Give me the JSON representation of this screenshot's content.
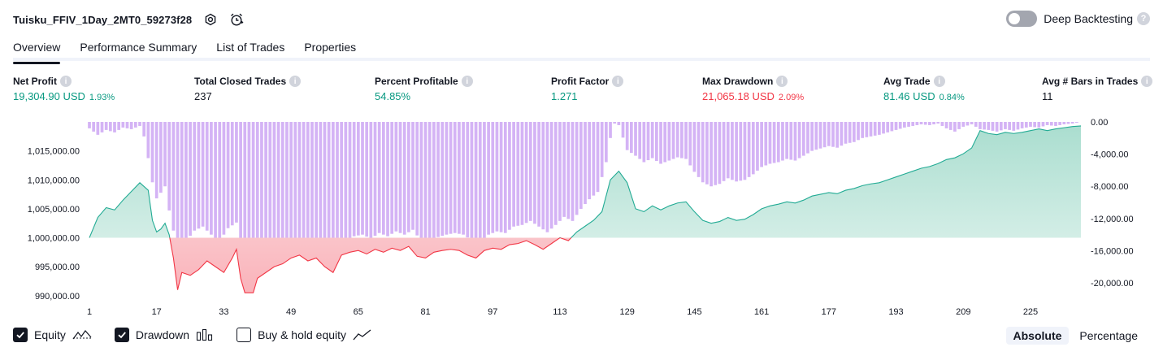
{
  "header": {
    "title": "Tuisku_FFIV_1Day_2MT0_59273f28",
    "settings_icon": "gear-icon",
    "alert_icon": "alarm-clock-icon"
  },
  "deep_backtesting": {
    "label": "Deep Backtesting",
    "enabled": false,
    "help": "?"
  },
  "tabs": [
    {
      "label": "Overview",
      "active": true
    },
    {
      "label": "Performance Summary",
      "active": false
    },
    {
      "label": "List of Trades",
      "active": false
    },
    {
      "label": "Properties",
      "active": false
    }
  ],
  "metrics": [
    {
      "label": "Net Profit",
      "value": "19,304.90 USD",
      "pct": "1.93%",
      "color": "green"
    },
    {
      "label": "Total Closed Trades",
      "value": "237",
      "pct": "",
      "color": "dark"
    },
    {
      "label": "Percent Profitable",
      "value": "54.85%",
      "pct": "",
      "color": "green"
    },
    {
      "label": "Profit Factor",
      "value": "1.271",
      "pct": "",
      "color": "green"
    },
    {
      "label": "Max Drawdown",
      "value": "21,065.18 USD",
      "pct": "2.09%",
      "color": "red"
    },
    {
      "label": "Avg Trade",
      "value": "81.46 USD",
      "pct": "0.84%",
      "color": "green"
    },
    {
      "label": "Avg # Bars in Trades",
      "value": "11",
      "pct": "",
      "color": "dark"
    }
  ],
  "chart_data": {
    "type": "area",
    "x_ticks": [
      "1",
      "17",
      "33",
      "49",
      "65",
      "81",
      "97",
      "113",
      "129",
      "145",
      "161",
      "177",
      "193",
      "209",
      "225"
    ],
    "equity": {
      "name": "Equity",
      "baseline": 1000000,
      "ylim": [
        988000,
        1020000
      ],
      "y_ticks": [
        "1,015,000.00",
        "1,010,000.00",
        "1,005,000.00",
        "1,000,000.00",
        "995,000.00",
        "990,000.00"
      ],
      "y_tick_values": [
        1015000,
        1010000,
        1005000,
        1000000,
        995000,
        990000
      ],
      "points": [
        [
          1,
          1000000
        ],
        [
          3,
          1003500
        ],
        [
          5,
          1005200
        ],
        [
          7,
          1004800
        ],
        [
          9,
          1006500
        ],
        [
          11,
          1008000
        ],
        [
          13,
          1009500
        ],
        [
          15,
          1008200
        ],
        [
          16,
          1003000
        ],
        [
          17,
          1001000
        ],
        [
          18,
          1001500
        ],
        [
          19,
          1002500
        ],
        [
          20,
          1000500
        ],
        [
          21,
          996500
        ],
        [
          22,
          991000
        ],
        [
          23,
          994000
        ],
        [
          25,
          993500
        ],
        [
          27,
          994500
        ],
        [
          29,
          996000
        ],
        [
          31,
          995000
        ],
        [
          33,
          994000
        ],
        [
          35,
          996500
        ],
        [
          36,
          998000
        ],
        [
          37,
          993000
        ],
        [
          38,
          990500
        ],
        [
          40,
          990500
        ],
        [
          41,
          993000
        ],
        [
          43,
          994000
        ],
        [
          45,
          995000
        ],
        [
          47,
          995500
        ],
        [
          49,
          996500
        ],
        [
          51,
          997000
        ],
        [
          53,
          996000
        ],
        [
          55,
          996500
        ],
        [
          57,
          995000
        ],
        [
          59,
          994000
        ],
        [
          61,
          997000
        ],
        [
          63,
          997500
        ],
        [
          65,
          997800
        ],
        [
          67,
          997200
        ],
        [
          69,
          998000
        ],
        [
          71,
          997500
        ],
        [
          73,
          998200
        ],
        [
          75,
          997800
        ],
        [
          77,
          998500
        ],
        [
          79,
          996800
        ],
        [
          81,
          996500
        ],
        [
          83,
          997500
        ],
        [
          85,
          997800
        ],
        [
          87,
          998000
        ],
        [
          89,
          997800
        ],
        [
          91,
          997000
        ],
        [
          93,
          996500
        ],
        [
          95,
          997800
        ],
        [
          97,
          998200
        ],
        [
          99,
          998000
        ],
        [
          101,
          998800
        ],
        [
          103,
          999000
        ],
        [
          105,
          999500
        ],
        [
          107,
          998800
        ],
        [
          109,
          998000
        ],
        [
          111,
          999000
        ],
        [
          113,
          1000000
        ],
        [
          115,
          999500
        ],
        [
          117,
          1001000
        ],
        [
          119,
          1002000
        ],
        [
          121,
          1003000
        ],
        [
          123,
          1004500
        ],
        [
          125,
          1010000
        ],
        [
          127,
          1011500
        ],
        [
          129,
          1009500
        ],
        [
          131,
          1005000
        ],
        [
          133,
          1004500
        ],
        [
          135,
          1005500
        ],
        [
          137,
          1004800
        ],
        [
          139,
          1005500
        ],
        [
          141,
          1006000
        ],
        [
          143,
          1006200
        ],
        [
          145,
          1004500
        ],
        [
          147,
          1003000
        ],
        [
          149,
          1002500
        ],
        [
          151,
          1002800
        ],
        [
          153,
          1003500
        ],
        [
          155,
          1003000
        ],
        [
          157,
          1003200
        ],
        [
          159,
          1004000
        ],
        [
          161,
          1005000
        ],
        [
          163,
          1005500
        ],
        [
          165,
          1005800
        ],
        [
          167,
          1006200
        ],
        [
          169,
          1006000
        ],
        [
          171,
          1006500
        ],
        [
          173,
          1007200
        ],
        [
          175,
          1007500
        ],
        [
          177,
          1007800
        ],
        [
          179,
          1007600
        ],
        [
          181,
          1008200
        ],
        [
          183,
          1008500
        ],
        [
          185,
          1009000
        ],
        [
          187,
          1009300
        ],
        [
          189,
          1009500
        ],
        [
          191,
          1010000
        ],
        [
          193,
          1010500
        ],
        [
          195,
          1011000
        ],
        [
          197,
          1011500
        ],
        [
          199,
          1012000
        ],
        [
          201,
          1012300
        ],
        [
          203,
          1012800
        ],
        [
          205,
          1013500
        ],
        [
          207,
          1013800
        ],
        [
          209,
          1014500
        ],
        [
          211,
          1015500
        ],
        [
          212,
          1017000
        ],
        [
          213,
          1018500
        ],
        [
          215,
          1018000
        ],
        [
          217,
          1017800
        ],
        [
          219,
          1018200
        ],
        [
          221,
          1018000
        ],
        [
          223,
          1018200
        ],
        [
          225,
          1018500
        ],
        [
          227,
          1018800
        ],
        [
          229,
          1018500
        ],
        [
          231,
          1018800
        ],
        [
          233,
          1019000
        ],
        [
          235,
          1019200
        ],
        [
          237,
          1019305
        ]
      ]
    },
    "drawdown": {
      "name": "Drawdown",
      "ylim": [
        -21000,
        0
      ],
      "y_ticks": [
        "0.00",
        "-4,000.00",
        "-8,000.00",
        "-12,000.00",
        "-16,000.00",
        "-20,000.00"
      ],
      "y_tick_values": [
        0,
        -4000,
        -8000,
        -12000,
        -16000,
        -20000
      ],
      "keyframes": [
        [
          1,
          -800
        ],
        [
          3,
          -1600
        ],
        [
          5,
          -1000
        ],
        [
          7,
          -1300
        ],
        [
          9,
          -700
        ],
        [
          11,
          -900
        ],
        [
          13,
          -500
        ],
        [
          14,
          -1800
        ],
        [
          15,
          -4500
        ],
        [
          16,
          -7500
        ],
        [
          17,
          -9500
        ],
        [
          18,
          -8800
        ],
        [
          19,
          -8000
        ],
        [
          20,
          -11000
        ],
        [
          21,
          -13500
        ],
        [
          22,
          -15500
        ],
        [
          24,
          -14800
        ],
        [
          26,
          -13500
        ],
        [
          28,
          -13000
        ],
        [
          30,
          -14000
        ],
        [
          32,
          -14800
        ],
        [
          34,
          -13200
        ],
        [
          36,
          -12500
        ],
        [
          37,
          -16500
        ],
        [
          38,
          -20000
        ],
        [
          40,
          -20200
        ],
        [
          42,
          -18000
        ],
        [
          44,
          -17200
        ],
        [
          46,
          -16500
        ],
        [
          48,
          -16200
        ],
        [
          50,
          -15500
        ],
        [
          52,
          -15000
        ],
        [
          54,
          -15800
        ],
        [
          56,
          -15500
        ],
        [
          58,
          -16500
        ],
        [
          60,
          -17200
        ],
        [
          62,
          -14600
        ],
        [
          64,
          -14200
        ],
        [
          66,
          -14000
        ],
        [
          68,
          -14500
        ],
        [
          70,
          -13800
        ],
        [
          72,
          -14200
        ],
        [
          74,
          -13600
        ],
        [
          76,
          -14000
        ],
        [
          78,
          -13400
        ],
        [
          80,
          -14800
        ],
        [
          82,
          -15000
        ],
        [
          84,
          -14300
        ],
        [
          86,
          -14000
        ],
        [
          88,
          -13800
        ],
        [
          90,
          -14000
        ],
        [
          92,
          -14700
        ],
        [
          94,
          -15300
        ],
        [
          96,
          -14000
        ],
        [
          98,
          -13600
        ],
        [
          100,
          -13800
        ],
        [
          102,
          -13000
        ],
        [
          104,
          -12800
        ],
        [
          106,
          -12300
        ],
        [
          108,
          -13000
        ],
        [
          110,
          -13700
        ],
        [
          112,
          -12800
        ],
        [
          114,
          -11800
        ],
        [
          116,
          -12300
        ],
        [
          118,
          -10800
        ],
        [
          120,
          -9600
        ],
        [
          122,
          -8700
        ],
        [
          124,
          -5000
        ],
        [
          125,
          -2000
        ],
        [
          126,
          -200
        ],
        [
          127,
          -400
        ],
        [
          129,
          -3500
        ],
        [
          131,
          -4200
        ],
        [
          133,
          -5000
        ],
        [
          135,
          -4500
        ],
        [
          137,
          -5200
        ],
        [
          139,
          -4800
        ],
        [
          141,
          -4400
        ],
        [
          143,
          -4600
        ],
        [
          145,
          -6200
        ],
        [
          147,
          -7500
        ],
        [
          149,
          -8000
        ],
        [
          151,
          -7700
        ],
        [
          153,
          -7000
        ],
        [
          155,
          -7400
        ],
        [
          157,
          -7200
        ],
        [
          159,
          -6500
        ],
        [
          161,
          -5600
        ],
        [
          163,
          -5200
        ],
        [
          165,
          -5000
        ],
        [
          167,
          -4600
        ],
        [
          169,
          -4800
        ],
        [
          171,
          -4200
        ],
        [
          173,
          -3600
        ],
        [
          175,
          -3300
        ],
        [
          177,
          -3000
        ],
        [
          179,
          -3200
        ],
        [
          181,
          -2700
        ],
        [
          183,
          -2500
        ],
        [
          185,
          -2000
        ],
        [
          187,
          -1800
        ],
        [
          189,
          -1600
        ],
        [
          191,
          -1300
        ],
        [
          193,
          -1000
        ],
        [
          195,
          -700
        ],
        [
          197,
          -500
        ],
        [
          199,
          -300
        ],
        [
          201,
          -400
        ],
        [
          203,
          -200
        ],
        [
          205,
          -800
        ],
        [
          207,
          -1200
        ],
        [
          209,
          -600
        ],
        [
          211,
          -300
        ],
        [
          213,
          -900
        ],
        [
          215,
          -1000
        ],
        [
          217,
          -1200
        ],
        [
          219,
          -900
        ],
        [
          221,
          -1100
        ],
        [
          223,
          -800
        ],
        [
          225,
          -600
        ],
        [
          227,
          -700
        ],
        [
          229,
          -400
        ],
        [
          231,
          -500
        ],
        [
          233,
          -300
        ],
        [
          235,
          -200
        ],
        [
          237,
          0
        ]
      ]
    },
    "legend_position": "bottom-left",
    "grid": false
  },
  "legend": [
    {
      "label": "Equity",
      "checked": true,
      "icon": "equity-icon"
    },
    {
      "label": "Drawdown",
      "checked": true,
      "icon": "drawdown-bars-icon"
    },
    {
      "label": "Buy & hold equity",
      "checked": false,
      "icon": "buy-hold-line-icon"
    }
  ],
  "units": [
    {
      "label": "Absolute",
      "active": true
    },
    {
      "label": "Percentage",
      "active": false
    }
  ],
  "colors": {
    "equity_line": "#22ab94",
    "equity_fill": "#b6e3d7",
    "loss_line": "#f23645",
    "loss_fill": "#fbc3c8",
    "drawdown_bar": "#d4b3f5"
  }
}
